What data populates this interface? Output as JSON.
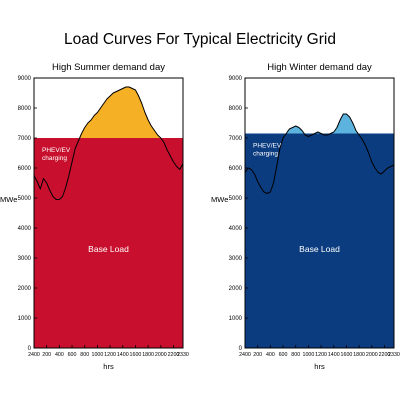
{
  "figure": {
    "title": "Load Curves For Typical Electricity Grid"
  },
  "colors": {
    "summer_base": "#c8102e",
    "summer_peak": "#f5b025",
    "winter_base": "#0b3c7f",
    "winter_peak": "#5bb3de",
    "curve": "#000000"
  },
  "chart_data": [
    {
      "type": "area",
      "title": "High Summer demand day",
      "xlabel": "hrs",
      "ylabel": "MWe",
      "ylim": [
        0,
        9000
      ],
      "xlim": [
        0,
        23.5
      ],
      "yticks": [
        0,
        1000,
        2000,
        3000,
        4000,
        5000,
        6000,
        7000,
        8000,
        9000
      ],
      "xticks": [
        {
          "x": 0,
          "label": "2400"
        },
        {
          "x": 2,
          "label": "200"
        },
        {
          "x": 4,
          "label": "400"
        },
        {
          "x": 6,
          "label": "600"
        },
        {
          "x": 8,
          "label": "800"
        },
        {
          "x": 10,
          "label": "1000"
        },
        {
          "x": 12,
          "label": "1200"
        },
        {
          "x": 14,
          "label": "1400"
        },
        {
          "x": 16,
          "label": "1600"
        },
        {
          "x": 18,
          "label": "1800"
        },
        {
          "x": 20,
          "label": "2000"
        },
        {
          "x": 22,
          "label": "2200"
        },
        {
          "x": 23.5,
          "label": "2330"
        }
      ],
      "base_load": 7000,
      "base_label": "Base Load",
      "charging_label": [
        "PHEV/EV",
        "charging"
      ],
      "x": [
        0,
        0.5,
        1,
        1.5,
        2,
        2.5,
        3,
        3.5,
        4,
        4.5,
        5,
        5.5,
        6,
        6.5,
        7,
        7.5,
        8,
        8.5,
        9,
        9.5,
        10,
        10.5,
        11,
        11.5,
        12,
        12.5,
        13,
        13.5,
        14,
        14.5,
        15,
        15.5,
        16,
        16.5,
        17,
        17.5,
        18,
        18.5,
        19,
        19.5,
        20,
        20.5,
        21,
        21.5,
        22,
        22.5,
        23,
        23.5
      ],
      "y": [
        5750,
        5550,
        5300,
        5650,
        5500,
        5250,
        5050,
        4950,
        4950,
        5050,
        5350,
        5750,
        6200,
        6650,
        6900,
        7150,
        7350,
        7500,
        7600,
        7750,
        7850,
        8000,
        8150,
        8300,
        8400,
        8500,
        8550,
        8600,
        8650,
        8700,
        8700,
        8650,
        8600,
        8400,
        8150,
        7850,
        7600,
        7400,
        7250,
        7100,
        7000,
        6850,
        6600,
        6400,
        6200,
        6050,
        5950,
        6150
      ]
    },
    {
      "type": "area",
      "title": "High Winter demand day",
      "xlabel": "hrs",
      "ylabel": "MWe",
      "ylim": [
        0,
        9000
      ],
      "xlim": [
        0,
        23.5
      ],
      "yticks": [
        0,
        1000,
        2000,
        3000,
        4000,
        5000,
        6000,
        7000,
        8000,
        9000
      ],
      "xticks": [
        {
          "x": 0,
          "label": "2400"
        },
        {
          "x": 2,
          "label": "200"
        },
        {
          "x": 4,
          "label": "400"
        },
        {
          "x": 6,
          "label": "600"
        },
        {
          "x": 8,
          "label": "800"
        },
        {
          "x": 10,
          "label": "1000"
        },
        {
          "x": 12,
          "label": "1200"
        },
        {
          "x": 14,
          "label": "1400"
        },
        {
          "x": 16,
          "label": "1600"
        },
        {
          "x": 18,
          "label": "1800"
        },
        {
          "x": 20,
          "label": "2000"
        },
        {
          "x": 22,
          "label": "2200"
        },
        {
          "x": 23.5,
          "label": "2330"
        }
      ],
      "base_load": 7150,
      "base_label": "Base Load",
      "charging_label": [
        "PHEV/EV",
        "charging"
      ],
      "x": [
        0,
        0.5,
        1,
        1.5,
        2,
        2.5,
        3,
        3.5,
        4,
        4.5,
        5,
        5.5,
        6,
        6.5,
        7,
        7.5,
        8,
        8.5,
        9,
        9.5,
        10,
        10.5,
        11,
        11.5,
        12,
        12.5,
        13,
        13.5,
        14,
        14.5,
        15,
        15.5,
        16,
        16.5,
        17,
        17.5,
        18,
        18.5,
        19,
        19.5,
        20,
        20.5,
        21,
        21.5,
        22,
        22.5,
        23,
        23.5
      ],
      "y": [
        5850,
        6000,
        5950,
        5800,
        5550,
        5350,
        5200,
        5150,
        5200,
        5500,
        6050,
        6650,
        7000,
        7150,
        7300,
        7350,
        7400,
        7350,
        7250,
        7100,
        7050,
        7100,
        7150,
        7200,
        7150,
        7100,
        7100,
        7150,
        7200,
        7350,
        7600,
        7800,
        7800,
        7700,
        7500,
        7250,
        7100,
        6950,
        6750,
        6500,
        6200,
        6000,
        5850,
        5800,
        5900,
        6000,
        6050,
        6100
      ]
    }
  ]
}
